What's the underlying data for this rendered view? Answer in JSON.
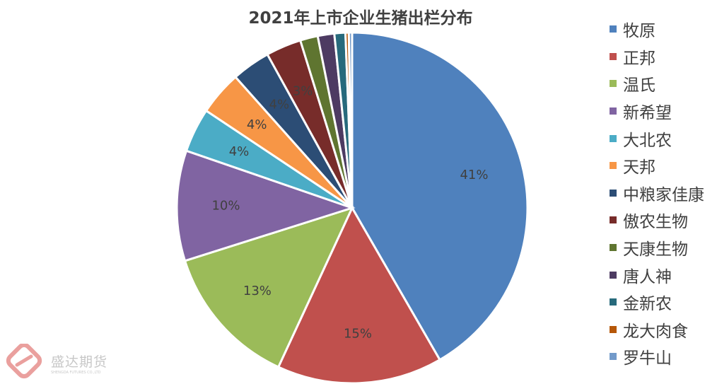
{
  "chart_data": {
    "type": "pie",
    "title": "2021年上市企业生猪出栏分布",
    "legend_position": "right",
    "slices": [
      {
        "name": "牧原",
        "value": 41,
        "label": "41%",
        "color": "#4F81BD"
      },
      {
        "name": "正邦",
        "value": 15,
        "label": "15%",
        "color": "#C0504D"
      },
      {
        "name": "温氏",
        "value": 13,
        "label": "13%",
        "color": "#9BBB59"
      },
      {
        "name": "新希望",
        "value": 10,
        "label": "10%",
        "color": "#8064A2"
      },
      {
        "name": "大北农",
        "value": 4,
        "label": "4%",
        "color": "#4BACC6"
      },
      {
        "name": "天邦",
        "value": 4,
        "label": "4%",
        "color": "#F79646"
      },
      {
        "name": "中粮家佳康",
        "value": 3.5,
        "label": "4%",
        "color": "#2C4D75"
      },
      {
        "name": "傲农生物",
        "value": 3.2,
        "label": "3%",
        "color": "#772C2A"
      },
      {
        "name": "天康生物",
        "value": 1.6,
        "label": "",
        "color": "#5F7530"
      },
      {
        "name": "唐人神",
        "value": 1.5,
        "label": "",
        "color": "#4D3B62"
      },
      {
        "name": "金新农",
        "value": 1.0,
        "label": "",
        "color": "#276A7C"
      },
      {
        "name": "龙大肉食",
        "value": 0.3,
        "label": "",
        "color": "#B65708"
      },
      {
        "name": "罗牛山",
        "value": 0.3,
        "label": "",
        "color": "#729ACA"
      }
    ]
  },
  "watermark": {
    "name": "盛达期货",
    "subtitle": "SHENGDA FUTURES CO.,LTD"
  }
}
